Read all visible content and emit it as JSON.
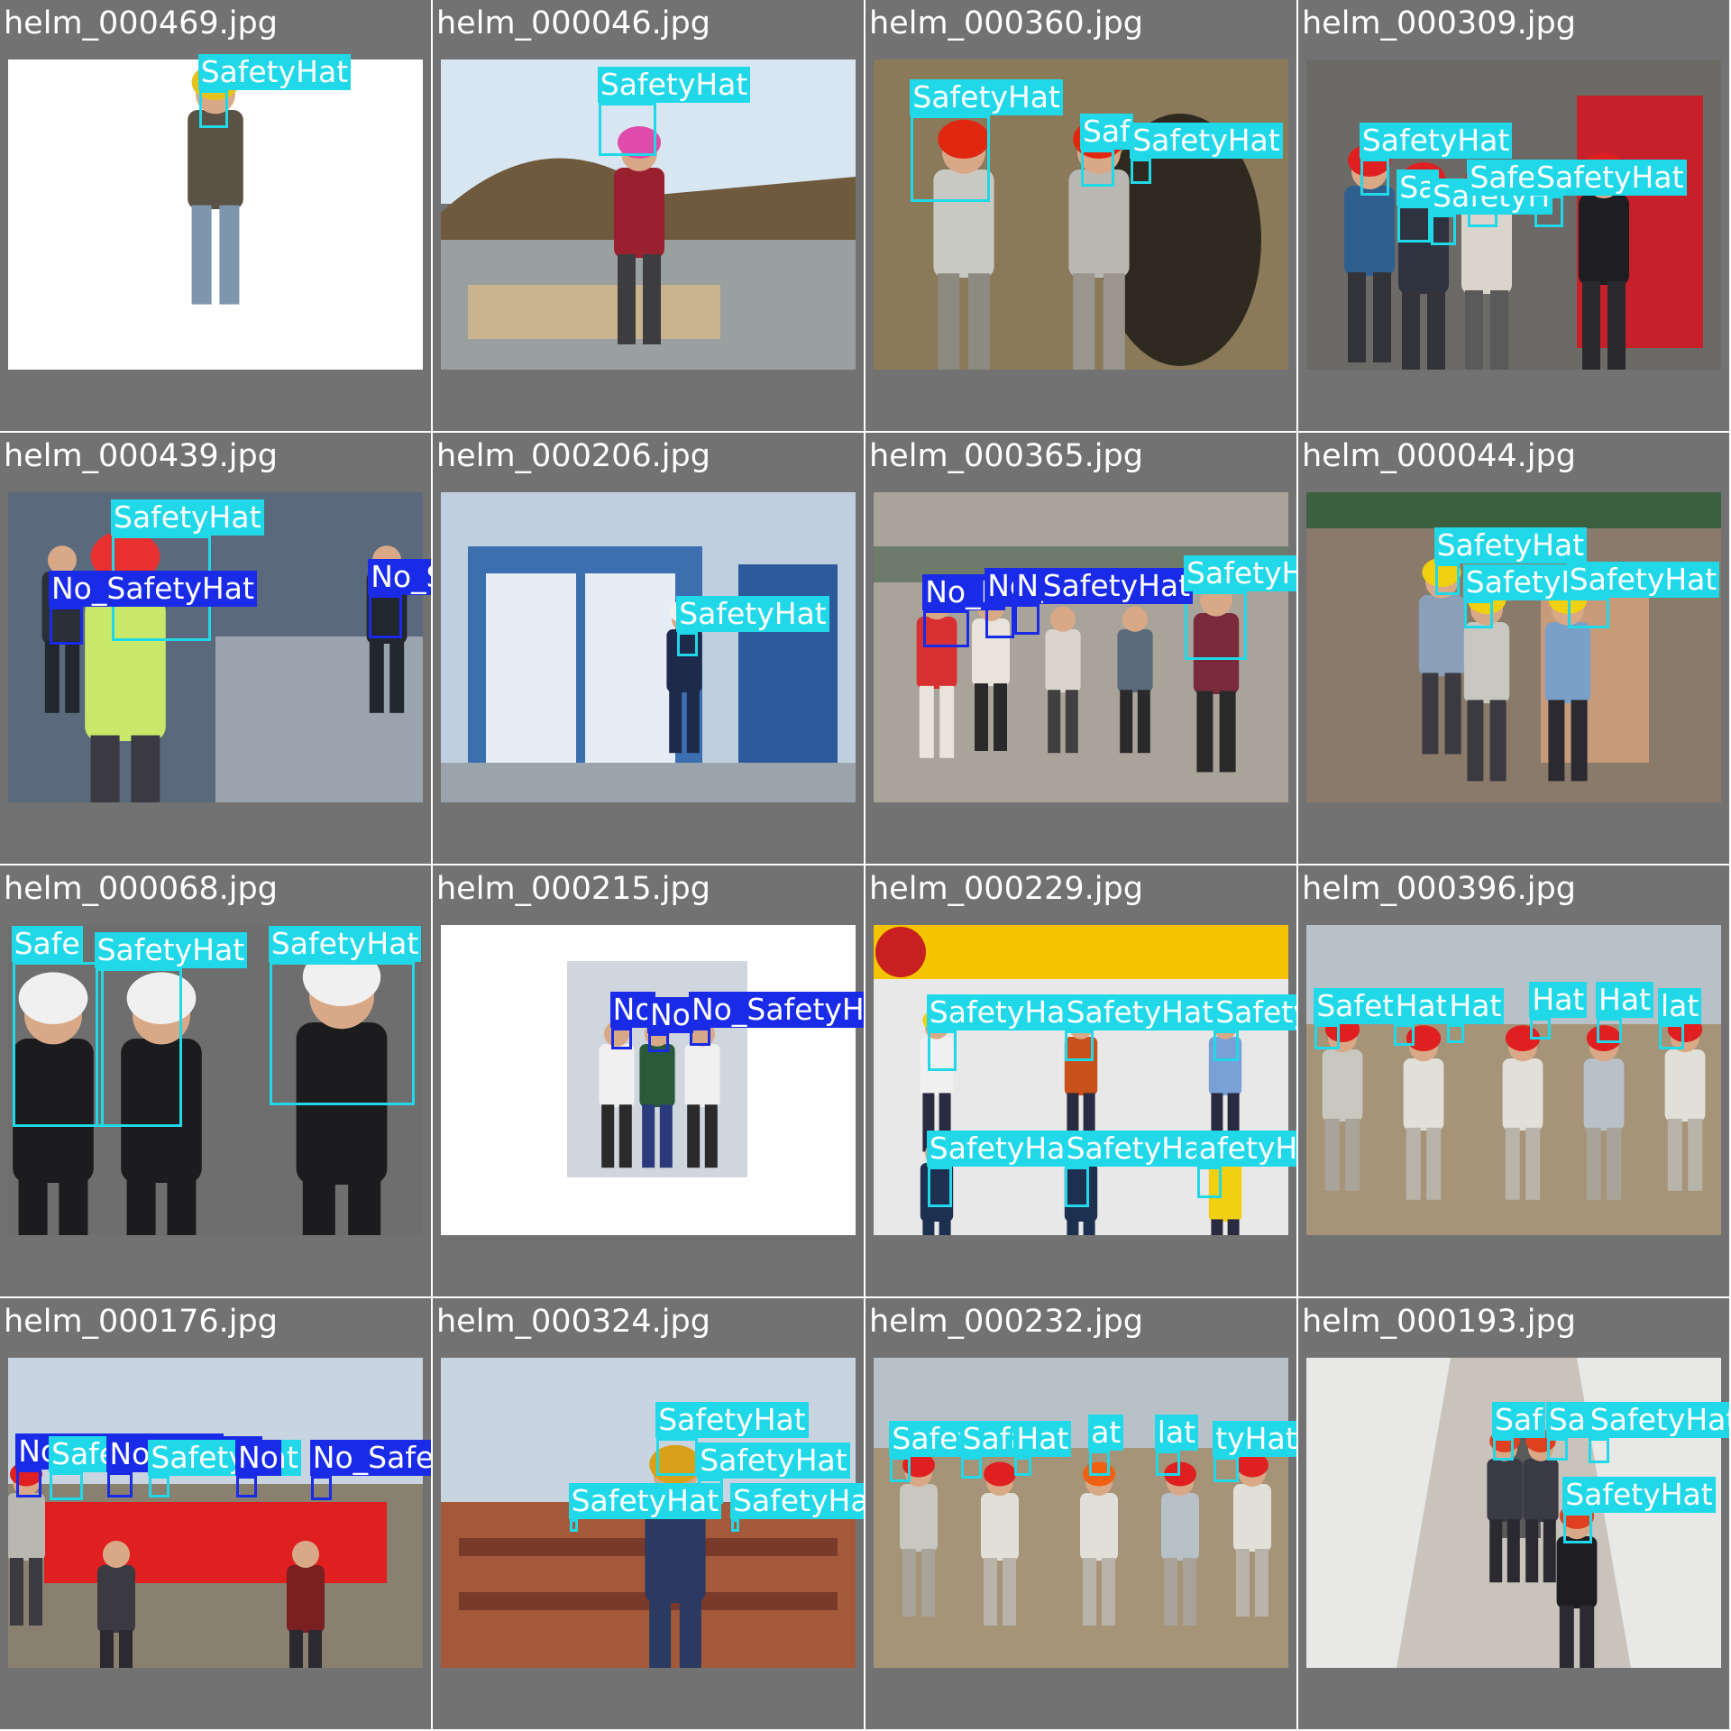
{
  "colors": {
    "safety_hat": "#20d8e8",
    "no_safety_hat": "#1a2be8",
    "tile_bg": "#727272"
  },
  "tiles": [
    {
      "file": "helm_000469.jpg",
      "scene": "studio",
      "dets": [
        {
          "cls": "SafetyHat",
          "label": "SafetyHat",
          "b": [
            0.46,
            0.1,
            0.07,
            0.12
          ]
        }
      ]
    },
    {
      "file": "helm_000046.jpg",
      "scene": "outdoor",
      "dets": [
        {
          "cls": "SafetyHat",
          "label": "SafetyHat",
          "b": [
            0.38,
            0.14,
            0.14,
            0.17
          ]
        }
      ]
    },
    {
      "file": "helm_000360.jpg",
      "scene": "tunnel",
      "dets": [
        {
          "cls": "SafetyHat",
          "label": "SafetyHat",
          "b": [
            0.09,
            0.18,
            0.19,
            0.28
          ]
        },
        {
          "cls": "SafetyHat",
          "label": "Saf",
          "b": [
            0.5,
            0.29,
            0.08,
            0.12
          ]
        },
        {
          "cls": "SafetyHat",
          "label": "SafetyHat",
          "b": [
            0.62,
            0.32,
            0.05,
            0.08
          ]
        }
      ]
    },
    {
      "file": "helm_000309.jpg",
      "scene": "building",
      "dets": [
        {
          "cls": "SafetyHat",
          "label": "SafetyHat",
          "b": [
            0.13,
            0.32,
            0.07,
            0.12
          ]
        },
        {
          "cls": "SafetyHat",
          "label": "Sa",
          "b": [
            0.22,
            0.47,
            0.08,
            0.12
          ]
        },
        {
          "cls": "SafetyHat",
          "label": "SafetyH",
          "b": [
            0.3,
            0.5,
            0.06,
            0.1
          ]
        },
        {
          "cls": "SafetyHat",
          "label": "SafetyHat",
          "b": [
            0.39,
            0.44,
            0.07,
            0.1
          ]
        },
        {
          "cls": "SafetyHat",
          "label": "SafetyHat",
          "b": [
            0.55,
            0.44,
            0.07,
            0.1
          ]
        }
      ]
    },
    {
      "file": "helm_000439.jpg",
      "scene": "gate",
      "dets": [
        {
          "cls": "SafetyHat",
          "label": "SafetyHat",
          "b": [
            0.25,
            0.14,
            0.24,
            0.34
          ]
        },
        {
          "cls": "NoSafetyHat",
          "label": "No_SafetyHat",
          "b": [
            0.1,
            0.37,
            0.08,
            0.12
          ]
        },
        {
          "cls": "NoSafetyHat",
          "label": "No_SafetyHat",
          "b": [
            0.87,
            0.33,
            0.08,
            0.14
          ]
        }
      ]
    },
    {
      "file": "helm_000206.jpg",
      "scene": "booth",
      "dets": [
        {
          "cls": "SafetyHat",
          "label": "SafetyHat",
          "b": [
            0.57,
            0.45,
            0.05,
            0.08
          ]
        }
      ]
    },
    {
      "file": "helm_000365.jpg",
      "scene": "alley",
      "dets": [
        {
          "cls": "NoSafetyHat",
          "label": "No_N",
          "b": [
            0.12,
            0.38,
            0.11,
            0.12
          ]
        },
        {
          "cls": "NoSafetyHat",
          "label": "No_SafetyHat",
          "b": [
            0.27,
            0.36,
            0.07,
            0.11
          ]
        },
        {
          "cls": "NoSafetyHat",
          "label": "N",
          "b": [
            0.34,
            0.36,
            0.06,
            0.1
          ]
        },
        {
          "cls": "SafetyHat",
          "label": "SafetyHat",
          "b": [
            0.75,
            0.32,
            0.15,
            0.22
          ]
        }
      ]
    },
    {
      "file": "helm_000044.jpg",
      "scene": "construction",
      "dets": [
        {
          "cls": "SafetyHat",
          "label": "SafetyHat",
          "b": [
            0.31,
            0.23,
            0.06,
            0.1
          ]
        },
        {
          "cls": "SafetyHat",
          "label": "SafetyH",
          "b": [
            0.38,
            0.35,
            0.07,
            0.09
          ]
        },
        {
          "cls": "SafetyHat",
          "label": "SafetyHat",
          "b": [
            0.63,
            0.34,
            0.1,
            0.1
          ]
        }
      ]
    },
    {
      "file": "helm_000068.jpg",
      "scene": "ceremony",
      "dets": [
        {
          "cls": "SafetyHat",
          "label": "Safe",
          "b": [
            0.01,
            0.12,
            0.22,
            0.53
          ]
        },
        {
          "cls": "SafetyHat",
          "label": "SafetyHat",
          "b": [
            0.21,
            0.14,
            0.21,
            0.51
          ]
        },
        {
          "cls": "SafetyHat",
          "label": "SafetyHat",
          "b": [
            0.63,
            0.12,
            0.35,
            0.46
          ]
        }
      ]
    },
    {
      "file": "helm_000215.jpg",
      "scene": "phone",
      "dets": [
        {
          "cls": "NoSafetyHat",
          "label": "No",
          "b": [
            0.41,
            0.33,
            0.05,
            0.07
          ]
        },
        {
          "cls": "NoSafetyHat",
          "label": "No",
          "b": [
            0.5,
            0.35,
            0.05,
            0.06
          ]
        },
        {
          "cls": "NoSafetyHat",
          "label": "No_SafetyHat",
          "b": [
            0.6,
            0.33,
            0.05,
            0.06
          ]
        }
      ]
    },
    {
      "file": "helm_000229.jpg",
      "scene": "poster",
      "dets": [
        {
          "cls": "SafetyHat",
          "label": "SafetyHa",
          "b": [
            0.13,
            0.34,
            0.07,
            0.13
          ]
        },
        {
          "cls": "SafetyHat",
          "label": "SafetyHat",
          "b": [
            0.46,
            0.34,
            0.07,
            0.1
          ]
        },
        {
          "cls": "SafetyHat",
          "label": "SafetyS",
          "b": [
            0.82,
            0.34,
            0.06,
            0.1
          ]
        },
        {
          "cls": "SafetyHat",
          "label": "SafetyHat",
          "b": [
            0.13,
            0.78,
            0.06,
            0.13
          ]
        },
        {
          "cls": "SafetyHat",
          "label": "SafetyHat",
          "b": [
            0.46,
            0.78,
            0.06,
            0.13
          ]
        },
        {
          "cls": "SafetyHat",
          "label": "afetyHat",
          "b": [
            0.78,
            0.78,
            0.06,
            0.1
          ]
        }
      ]
    },
    {
      "file": "helm_000396.jpg",
      "scene": "field",
      "dets": [
        {
          "cls": "SafetyHat",
          "label": "SafetyHat",
          "b": [
            0.02,
            0.32,
            0.06,
            0.08
          ]
        },
        {
          "cls": "SafetyHat",
          "label": "Hat",
          "b": [
            0.21,
            0.32,
            0.05,
            0.07
          ]
        },
        {
          "cls": "SafetyHat",
          "label": "Hat",
          "b": [
            0.34,
            0.32,
            0.04,
            0.06
          ]
        },
        {
          "cls": "SafetyHat",
          "label": "Hat",
          "b": [
            0.54,
            0.3,
            0.05,
            0.07
          ]
        },
        {
          "cls": "SafetyHat",
          "label": "Hat",
          "b": [
            0.7,
            0.3,
            0.06,
            0.08
          ]
        },
        {
          "cls": "SafetyHat",
          "label": "lat",
          "b": [
            0.85,
            0.32,
            0.06,
            0.08
          ]
        }
      ]
    },
    {
      "file": "helm_000176.jpg",
      "scene": "banner",
      "dets": [
        {
          "cls": "NoSafetyHat",
          "label": "No_SafetyHat",
          "b": [
            0.02,
            0.36,
            0.06,
            0.09
          ]
        },
        {
          "cls": "SafetyHat",
          "label": "Safe",
          "b": [
            0.1,
            0.37,
            0.08,
            0.09
          ]
        },
        {
          "cls": "NoSafetyHat",
          "label": "No_Safety",
          "b": [
            0.24,
            0.37,
            0.06,
            0.08
          ]
        },
        {
          "cls": "SafetyHat",
          "label": "SafetyHat",
          "b": [
            0.34,
            0.38,
            0.05,
            0.07
          ]
        },
        {
          "cls": "NoSafetyHat",
          "label": "No",
          "b": [
            0.55,
            0.38,
            0.05,
            0.07
          ]
        },
        {
          "cls": "NoSafetyHat",
          "label": "No_SafetyHat",
          "b": [
            0.73,
            0.38,
            0.05,
            0.08
          ]
        }
      ]
    },
    {
      "file": "helm_000324.jpg",
      "scene": "bricks",
      "dets": [
        {
          "cls": "SafetyHat",
          "label": "SafetyHat",
          "b": [
            0.52,
            0.26,
            0.1,
            0.12
          ]
        },
        {
          "cls": "SafetyHat",
          "label": "SafetyHat",
          "b": [
            0.62,
            0.39,
            0.06,
            0.08
          ]
        },
        {
          "cls": "SafetyHat",
          "label": "SafetyHat",
          "b": [
            0.31,
            0.52,
            0.02,
            0.04
          ]
        },
        {
          "cls": "SafetyHat",
          "label": "SafetyHat",
          "b": [
            0.7,
            0.52,
            0.02,
            0.04
          ]
        }
      ]
    },
    {
      "file": "helm_000232.jpg",
      "scene": "field2",
      "dets": [
        {
          "cls": "SafetyHat",
          "label": "SafetyHat",
          "b": [
            0.04,
            0.32,
            0.05,
            0.08
          ]
        },
        {
          "cls": "SafetyHat",
          "label": "Saf",
          "b": [
            0.21,
            0.32,
            0.05,
            0.07
          ]
        },
        {
          "cls": "SafetyHat",
          "label": "Hat",
          "b": [
            0.34,
            0.32,
            0.04,
            0.06
          ]
        },
        {
          "cls": "SafetyHat",
          "label": "at",
          "b": [
            0.52,
            0.3,
            0.05,
            0.08
          ]
        },
        {
          "cls": "SafetyHat",
          "label": "lat",
          "b": [
            0.68,
            0.3,
            0.06,
            0.08
          ]
        },
        {
          "cls": "SafetyHat",
          "label": "tyHat",
          "b": [
            0.82,
            0.32,
            0.06,
            0.08
          ]
        }
      ]
    },
    {
      "file": "helm_000193.jpg",
      "scene": "corridor",
      "dets": [
        {
          "cls": "SafetyHat",
          "label": "Saf",
          "b": [
            0.45,
            0.26,
            0.05,
            0.07
          ]
        },
        {
          "cls": "SafetyHat",
          "label": "Sa",
          "b": [
            0.58,
            0.26,
            0.05,
            0.07
          ]
        },
        {
          "cls": "SafetyHat",
          "label": "SafetyHat",
          "b": [
            0.68,
            0.26,
            0.05,
            0.08
          ]
        },
        {
          "cls": "SafetyHat",
          "label": "SafetyHat",
          "b": [
            0.62,
            0.5,
            0.07,
            0.1
          ]
        }
      ]
    }
  ]
}
